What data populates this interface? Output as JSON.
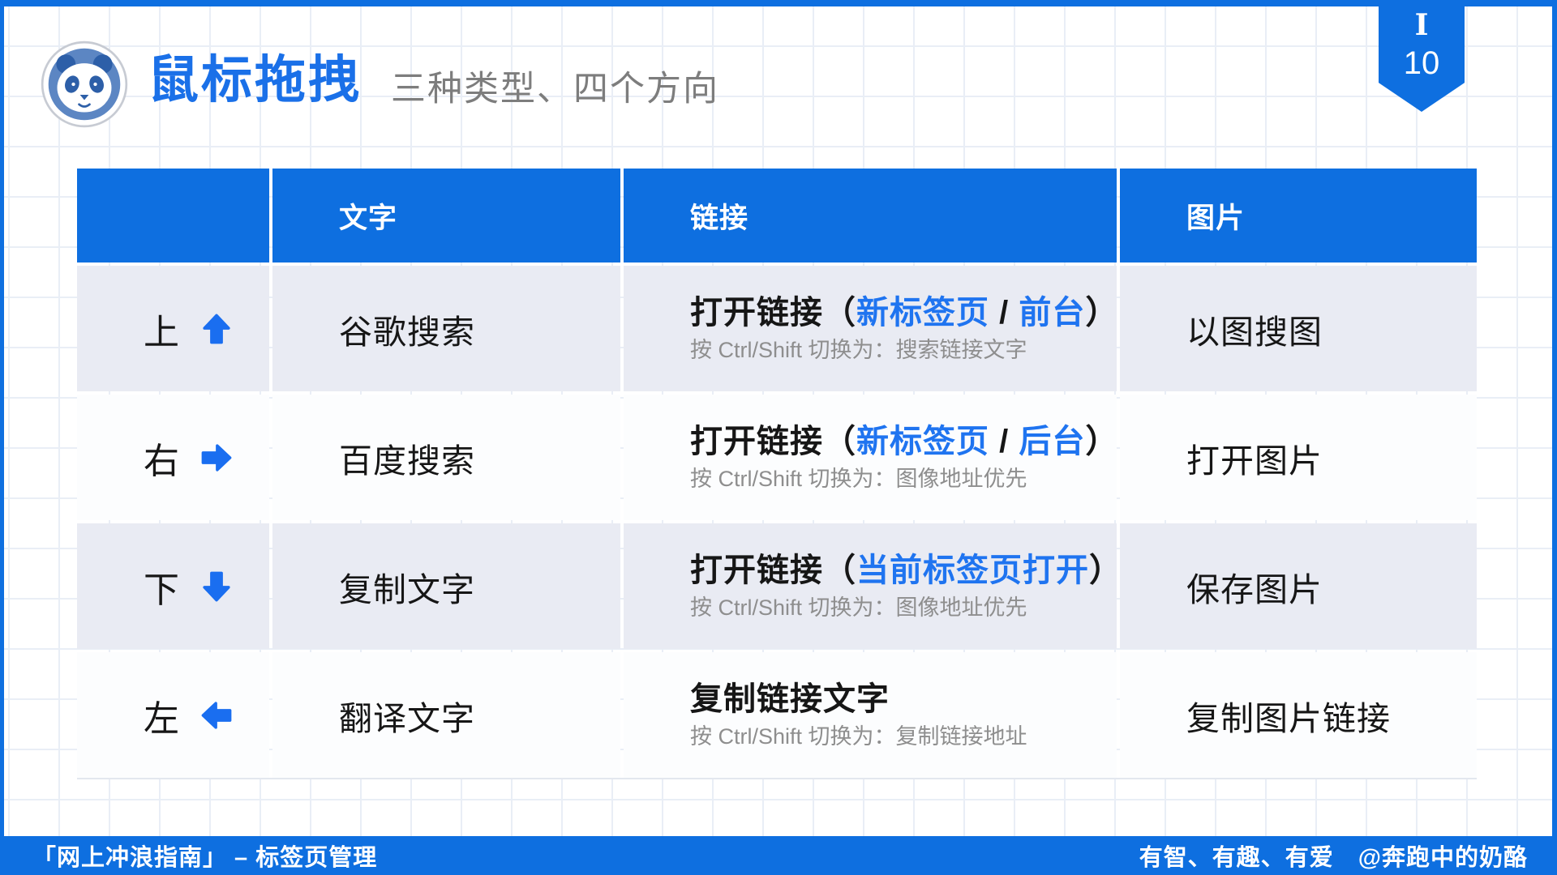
{
  "slide": {
    "title": "鼠标拖拽",
    "subtitle": "三种类型、四个方向",
    "section_label": "I",
    "page_number": "10",
    "logo_icon": "panda-icon"
  },
  "colors": {
    "primary_blue": "#0e6fe0",
    "link_blue": "#1f74f0",
    "title_blue": "#1a70e8",
    "arrow_blue": "#1a6ef0",
    "row_shaded": "#e9ebf3",
    "row_plain": "#fcfdfe",
    "text_dark": "#161616",
    "note_gray": "#8e8e8e",
    "subtitle_gray": "#7d7d7d"
  },
  "table": {
    "headers": [
      "",
      "文字",
      "链接",
      "图片"
    ],
    "rows": [
      {
        "direction": "上",
        "arrow_icon": "arrow-up-icon",
        "text_action": "谷歌搜索",
        "link_action": {
          "segments": [
            {
              "text": "打开链接（",
              "style": "plain"
            },
            {
              "text": "新标签页",
              "style": "link"
            },
            {
              "text": " / ",
              "style": "plain"
            },
            {
              "text": "前台",
              "style": "link"
            },
            {
              "text": "）",
              "style": "plain"
            }
          ],
          "note": "按 Ctrl/Shift 切换为：搜索链接文字"
        },
        "image_action": "以图搜图"
      },
      {
        "direction": "右",
        "arrow_icon": "arrow-right-icon",
        "text_action": "百度搜索",
        "link_action": {
          "segments": [
            {
              "text": "打开链接（",
              "style": "plain"
            },
            {
              "text": "新标签页",
              "style": "link"
            },
            {
              "text": " / ",
              "style": "plain"
            },
            {
              "text": "后台",
              "style": "link"
            },
            {
              "text": "）",
              "style": "plain"
            }
          ],
          "note": "按 Ctrl/Shift 切换为：图像地址优先"
        },
        "image_action": "打开图片"
      },
      {
        "direction": "下",
        "arrow_icon": "arrow-down-icon",
        "text_action": "复制文字",
        "link_action": {
          "segments": [
            {
              "text": "打开链接（",
              "style": "plain"
            },
            {
              "text": "当前标签页打开",
              "style": "link"
            },
            {
              "text": "）",
              "style": "plain"
            }
          ],
          "note": "按 Ctrl/Shift 切换为：图像地址优先"
        },
        "image_action": "保存图片"
      },
      {
        "direction": "左",
        "arrow_icon": "arrow-left-icon",
        "text_action": "翻译文字",
        "link_action": {
          "segments": [
            {
              "text": "复制链接文字",
              "style": "plain"
            }
          ],
          "note": "按 Ctrl/Shift 切换为：复制链接地址"
        },
        "image_action": "复制图片链接"
      }
    ]
  },
  "footer": {
    "left": "「网上冲浪指南」 – 标签页管理",
    "right": "有智、有趣、有爱　@奔跑中的奶酪"
  }
}
